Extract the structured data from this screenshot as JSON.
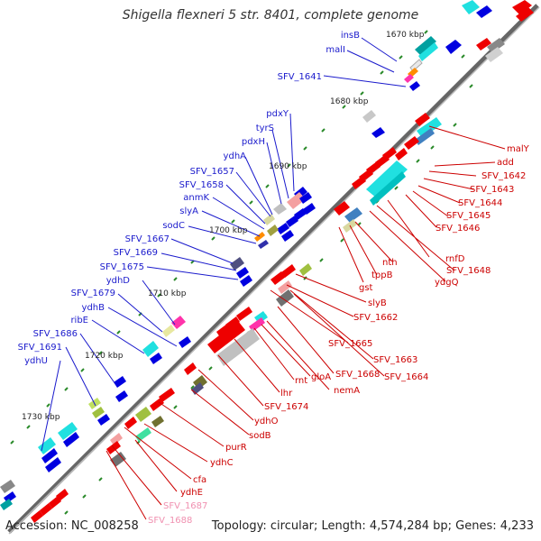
{
  "title": "Shigella flexneri 5 str. 8401, complete genome",
  "accession": "Accession: NC_008258",
  "summary": "Topology: circular; Length: 4,574,284 bp; Genes: 4,233",
  "kbp_labels": [
    "1670 kbp",
    "1680 kbp",
    "1690 kbp",
    "1700 kbp",
    "1710 kbp",
    "1720 kbp",
    "1730 kbp"
  ],
  "forward_gene_labels": [
    "insB",
    "malI",
    "SFV_1641",
    "pdxY",
    "tyrS",
    "pdxH",
    "ydhA",
    "SFV_1657",
    "SFV_1658",
    "anmK",
    "slyA",
    "sodC",
    "SFV_1667",
    "SFV_1669",
    "SFV_1675",
    "ydhD",
    "SFV_1679",
    "ydhB",
    "ribE",
    "SFV_1686",
    "SFV_1691",
    "ydhU"
  ],
  "reverse_gene_labels": [
    "malY",
    "add",
    "SFV_1642",
    "SFV_1643",
    "SFV_1644",
    "SFV_1645",
    "SFV_1646",
    "rnfD",
    "SFV_1648",
    "ydgQ",
    "nth",
    "tppB",
    "gst",
    "slyB",
    "SFV_1662",
    "SFV_1665",
    "SFV_1663",
    "SFV_1664",
    "SFV_1668",
    "nemA",
    "gloA",
    "rnt",
    "lhr",
    "SFV_1674",
    "ydhO",
    "sodB",
    "purR",
    "ydhC",
    "cfa",
    "ydhE",
    "SFV_1687",
    "SFV_1688"
  ],
  "colors": {
    "forward_label": "#1a1acc",
    "reverse_label": "#cc0000",
    "pseudo_label": "#f090b0",
    "forward_gene": "#0000e0",
    "reverse_gene": "#ee0000",
    "backbone": "#777777",
    "tick": "#2a8a2a"
  }
}
